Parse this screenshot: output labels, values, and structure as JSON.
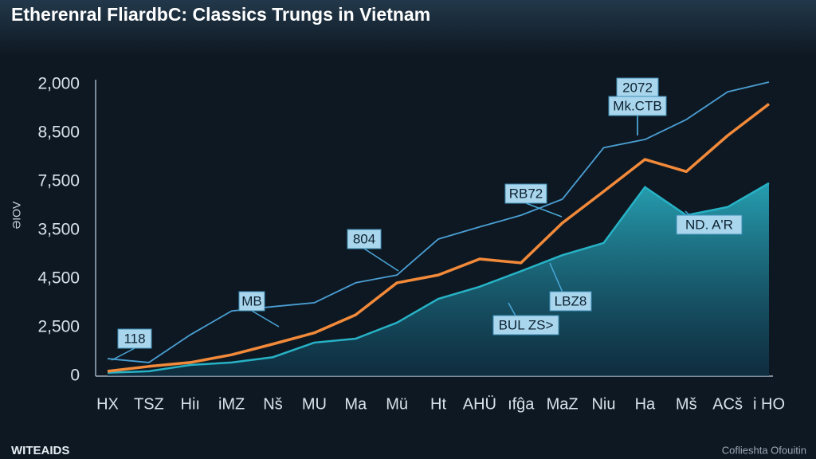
{
  "chart_data": {
    "type": "line",
    "title": "Etherenral FliardbC: Classics Trungs in Vietnam",
    "y_label": "ƏIOV",
    "footer_left": "WITEAIDS",
    "footer_right": "Coflieshta Ofouitin",
    "categories": [
      "HX",
      "TSZ",
      "Hiı",
      "iMZ",
      "Nš",
      "MU",
      "Ma",
      "Mü",
      "Ht",
      "AHÜ",
      "ıfĝa",
      "MaZ",
      "Niu",
      "Ha",
      "Mš",
      "ACš",
      "i HO"
    ],
    "y_axis_labels": [
      "0",
      "2,500",
      "4,500",
      "3,500",
      "7,500",
      "8,500",
      "2,000"
    ],
    "ylim": [
      0,
      6.1
    ],
    "series": [
      {
        "name": "upper",
        "style": "line",
        "color": "#4a9fd4",
        "values": [
          0.36,
          0.28,
          0.85,
          1.34,
          1.43,
          1.51,
          1.92,
          2.08,
          2.82,
          3.07,
          3.31,
          3.64,
          4.7,
          4.87,
          5.28,
          5.85,
          6.05
        ]
      },
      {
        "name": "area",
        "style": "area",
        "color": "#27b2c6",
        "values": [
          0.07,
          0.1,
          0.23,
          0.28,
          0.39,
          0.69,
          0.77,
          1.1,
          1.59,
          1.84,
          2.16,
          2.49,
          2.74,
          3.89,
          3.31,
          3.48,
          3.97
        ]
      },
      {
        "name": "main",
        "style": "line",
        "color": "#f28a3a",
        "values": [
          0.1,
          0.2,
          0.28,
          0.44,
          0.66,
          0.89,
          1.26,
          1.92,
          2.08,
          2.41,
          2.33,
          3.15,
          3.8,
          4.46,
          4.21,
          4.95,
          5.6
        ]
      }
    ],
    "annotations": [
      "118",
      "MB",
      "804",
      "RB72",
      "2072",
      "Mk.CTB",
      "ND. A'R",
      "LBZ8",
      "BUL ZS>"
    ]
  }
}
